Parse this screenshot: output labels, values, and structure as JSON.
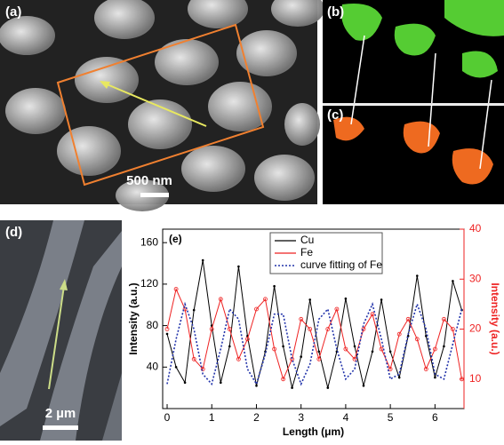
{
  "panels": {
    "a": "(a)",
    "b": "(b)",
    "c": "(c)",
    "d": "(d)",
    "scale_a": "500 nm",
    "scale_d": "2 µm"
  },
  "chart_data": {
    "type": "line",
    "panel_label": "(e)",
    "x_label": "Length (μm)",
    "y_label": "Intensity (a.u.)",
    "y2_label": "Intensity (a.u.)",
    "xlim": [
      -0.1,
      6.65
    ],
    "xticks": [
      0,
      1,
      2,
      3,
      4,
      5,
      6
    ],
    "ylim": [
      0,
      173
    ],
    "yticks": [
      40,
      80,
      120,
      160
    ],
    "y2lim": [
      4.1,
      40
    ],
    "y2ticks": [
      10,
      20,
      30,
      40
    ],
    "x": [
      0,
      0.2,
      0.4,
      0.6,
      0.8,
      1.0,
      1.2,
      1.4,
      1.6,
      1.8,
      2.0,
      2.2,
      2.4,
      2.6,
      2.8,
      3.0,
      3.2,
      3.4,
      3.6,
      3.8,
      4.0,
      4.2,
      4.4,
      4.6,
      4.8,
      5.0,
      5.2,
      5.4,
      5.6,
      5.8,
      6.0,
      6.2,
      6.4,
      6.6
    ],
    "series": [
      {
        "name": "Cu",
        "color": "#000000",
        "line_style": "solid",
        "axis": "y",
        "values": [
          72,
          40,
          25,
          95,
          143,
          80,
          25,
          60,
          137,
          70,
          22,
          55,
          118,
          60,
          20,
          50,
          105,
          55,
          20,
          55,
          106,
          60,
          22,
          55,
          105,
          55,
          30,
          70,
          128,
          70,
          30,
          60,
          123,
          95
        ]
      },
      {
        "name": "Fe",
        "color": "#ee2222",
        "line_style": "solid",
        "axis": "y2",
        "values": [
          20,
          28,
          24,
          14,
          12,
          20,
          26,
          20,
          14,
          18,
          24,
          26,
          16,
          10,
          14,
          22,
          20,
          14,
          20,
          24,
          16,
          14,
          20,
          23,
          16,
          12,
          19,
          22,
          18,
          12,
          16,
          22,
          20,
          10
        ]
      },
      {
        "name": "curve fitting of Fe",
        "color": "#2233aa",
        "line_style": "dotted",
        "axis": "y2",
        "values": [
          9,
          18,
          25,
          20,
          11,
          9,
          16,
          24,
          22,
          12,
          9,
          15,
          23,
          23,
          14,
          9,
          13,
          22,
          24,
          16,
          10,
          12,
          21,
          25,
          18,
          10,
          11,
          19,
          25,
          20,
          11,
          10,
          17,
          24
        ]
      }
    ]
  }
}
